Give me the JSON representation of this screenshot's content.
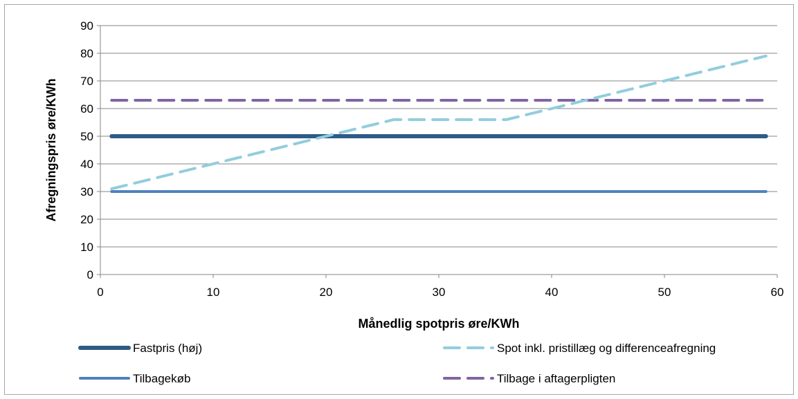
{
  "chart_data": {
    "type": "line",
    "xlabel": "Månedlig spotpris øre/KWh",
    "ylabel": "Afregningspris øre/KWh",
    "xlim": [
      0,
      60
    ],
    "ylim": [
      0,
      90
    ],
    "xticks": [
      0,
      10,
      20,
      30,
      40,
      50,
      60
    ],
    "yticks": [
      0,
      10,
      20,
      30,
      40,
      50,
      60,
      70,
      80,
      90
    ],
    "grid": "horizontal",
    "legend_position": "bottom",
    "series": [
      {
        "name": "Fastpris (høj)",
        "color": "#2e5a87",
        "style": "solid-thick",
        "x": [
          1,
          59
        ],
        "y": [
          50,
          50
        ]
      },
      {
        "name": "Spot inkl. pristillæg og differenceafregning",
        "color": "#92cddc",
        "style": "dashed",
        "x": [
          1,
          26,
          36,
          59
        ],
        "y": [
          31,
          56,
          56,
          79
        ]
      },
      {
        "name": "Tilbagekøb",
        "color": "#4f81bd",
        "style": "solid",
        "x": [
          1,
          59
        ],
        "y": [
          30,
          30
        ]
      },
      {
        "name": "Tilbage i aftagerpligten",
        "color": "#8064a2",
        "style": "dashed",
        "x": [
          1,
          59
        ],
        "y": [
          63,
          63
        ]
      }
    ]
  }
}
